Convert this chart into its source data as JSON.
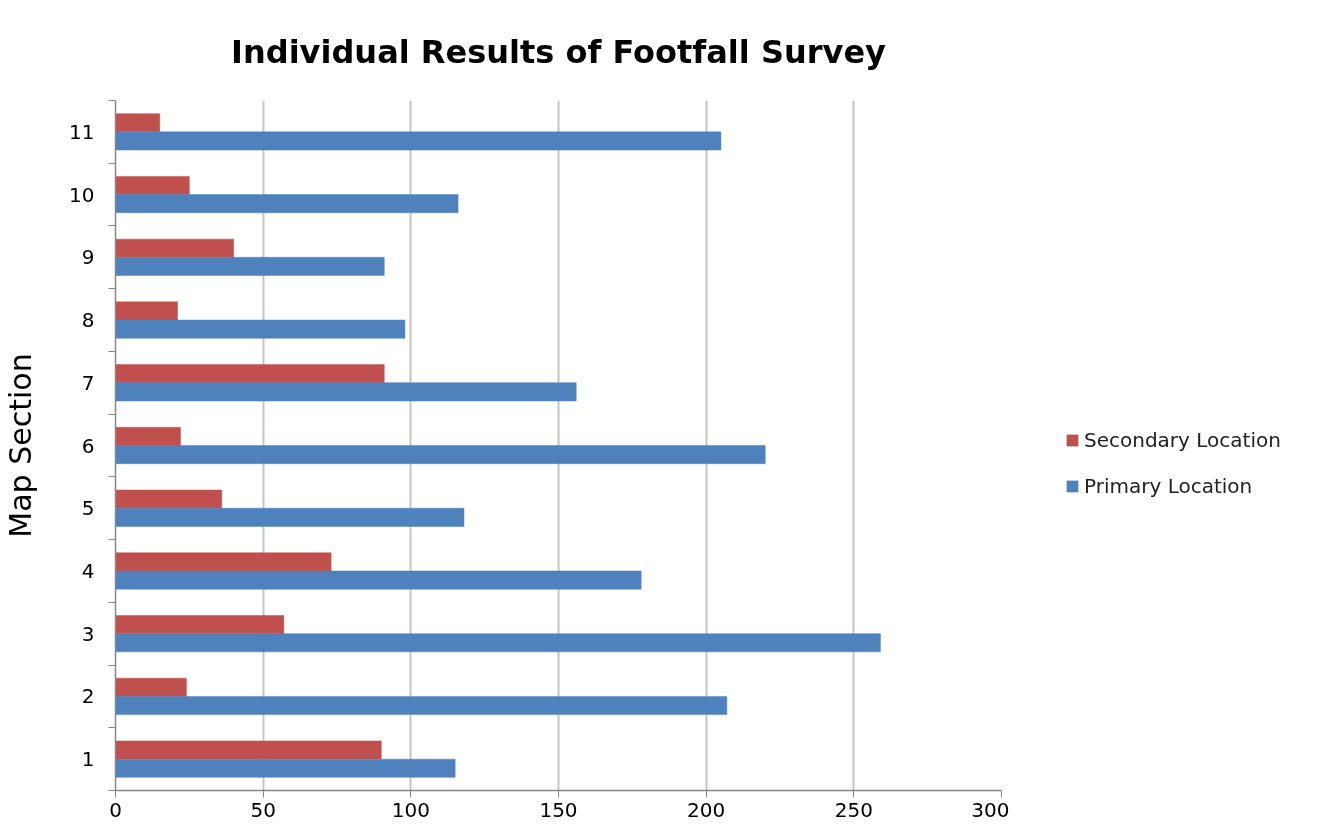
{
  "chart_data": {
    "type": "bar",
    "orientation": "horizontal",
    "title": "Individual Results of Footfall Survey",
    "ylabel": "Map Section",
    "categories": [
      "11",
      "10",
      "9",
      "8",
      "7",
      "6",
      "5",
      "4",
      "3",
      "2",
      "1"
    ],
    "series": [
      {
        "name": "Secondary Location",
        "color": "#c0504d",
        "values": [
          15,
          25,
          40,
          21,
          91,
          22,
          36,
          73,
          57,
          24,
          90
        ]
      },
      {
        "name": "Primary Location",
        "color": "#4f81bd",
        "values": [
          205,
          116,
          91,
          98,
          156,
          220,
          118,
          178,
          259,
          207,
          115
        ]
      }
    ],
    "xlim": [
      0,
      300
    ],
    "xticks": [
      0,
      50,
      100,
      150,
      200,
      250,
      300
    ],
    "grid": "x",
    "legend": "right"
  }
}
